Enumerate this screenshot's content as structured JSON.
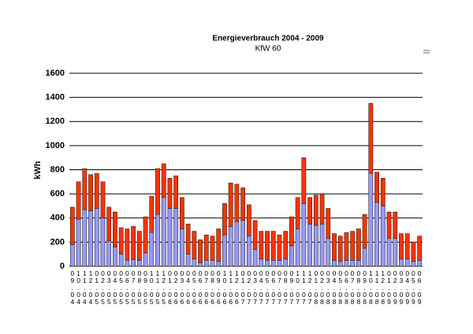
{
  "chart_data": {
    "type": "stacked_bar",
    "title": "Energieverbrauch 2004 - 2009",
    "subtitle": "KfW 60",
    "y_label": "kWh",
    "categories": [
      "09.04",
      "10.04",
      "11.04",
      "12.04",
      "01.05",
      "02.05",
      "03.05",
      "04.05",
      "05.05",
      "06.05",
      "07.05",
      "08.05",
      "09.05",
      "10.05",
      "11.05",
      "12.05",
      "01.06",
      "02.06",
      "03.06",
      "04.06",
      "05.06",
      "06.06",
      "07.06",
      "08.06",
      "09.06",
      "10.06",
      "11.06",
      "12.06",
      "01.07",
      "02.07",
      "03.07",
      "04.07",
      "05.07",
      "06.07",
      "07.07",
      "08.07",
      "09.07",
      "10.07",
      "11.07",
      "12.07",
      "01.08",
      "02.08",
      "03.08",
      "04.08",
      "05.08",
      "06.08",
      "07.08",
      "08.08",
      "09.08",
      "10.08",
      "11.08",
      "12.08",
      "01.09",
      "02.09",
      "03.09",
      "04.09",
      "05.09",
      "06.09"
    ],
    "series": [
      {
        "color": "#9999ff",
        "values": [
          180,
          390,
          470,
          460,
          480,
          400,
          210,
          160,
          100,
          50,
          55,
          50,
          110,
          280,
          430,
          570,
          480,
          480,
          310,
          100,
          60,
          30,
          50,
          50,
          40,
          260,
          330,
          370,
          380,
          250,
          140,
          60,
          50,
          50,
          50,
          60,
          170,
          310,
          520,
          350,
          340,
          350,
          230,
          50,
          40,
          50,
          50,
          50,
          150,
          770,
          530,
          500,
          230,
          230,
          60,
          60,
          40,
          50
        ]
      },
      {
        "color": "#ff3300",
        "values": [
          310,
          310,
          340,
          300,
          290,
          300,
          280,
          290,
          220,
          260,
          275,
          240,
          300,
          300,
          380,
          280,
          250,
          270,
          260,
          250,
          230,
          190,
          210,
          200,
          270,
          260,
          360,
          310,
          270,
          260,
          240,
          230,
          240,
          240,
          210,
          230,
          240,
          260,
          380,
          220,
          250,
          250,
          250,
          220,
          210,
          230,
          240,
          260,
          280,
          580,
          250,
          230,
          220,
          220,
          210,
          210,
          160,
          200
        ]
      }
    ],
    "ylim": [
      0,
      1600
    ],
    "yticks": [
      0,
      200,
      400,
      600,
      800,
      1000,
      1200,
      1400,
      1600
    ],
    "grid": true
  }
}
